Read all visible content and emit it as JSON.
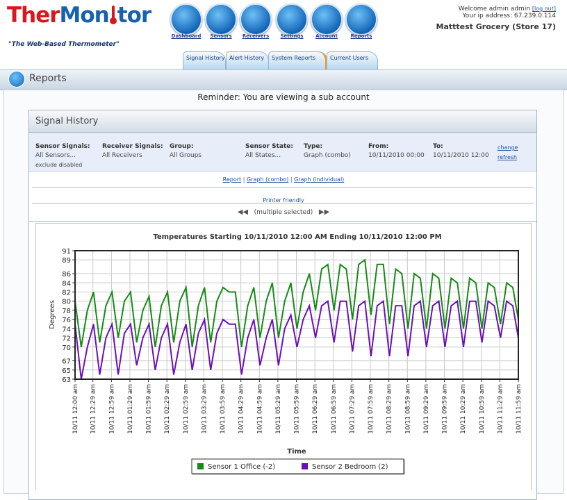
{
  "header": {
    "logo": {
      "part1": "Ther",
      "part2": "Mon",
      "part3": "tor"
    },
    "tagline": "\"The Web-Based Thermometer\"",
    "nav": [
      "Dashboard",
      "Sensors",
      "Receivers",
      "Settings",
      "Account",
      "Reports"
    ],
    "tabs": [
      "Signal History",
      "Alert History",
      "System Reports",
      "Current Users"
    ],
    "user": {
      "welcome": "Welcome admin admin",
      "logout": "[log out]",
      "ip": "Your ip address: 67.239.0.114",
      "store": "Matttest Grocery (Store 17)"
    }
  },
  "page_title": "Reports",
  "reminder": "Reminder: You are viewing a sub account",
  "panel": {
    "title": "Signal History",
    "filters": [
      {
        "label": "Sensor Signals:",
        "value": "All Sensors..."
      },
      {
        "label": "Receiver Signals:",
        "value": "All Receivers"
      },
      {
        "label": "Group:",
        "value": "All Groups"
      },
      {
        "label": "Sensor State:",
        "value": "All States..."
      },
      {
        "label": "Type:",
        "value": "Graph (combo)"
      },
      {
        "label": "From:",
        "value": "10/11/2010 00:00"
      },
      {
        "label": "To:",
        "value": "10/11/2010 12:00"
      }
    ],
    "extra": "exclude disabled",
    "change": "change",
    "refresh": "refresh",
    "links": [
      "Report",
      "Graph (combo)",
      "Graph (individual)"
    ],
    "printer": "Printer friendly",
    "selection": "(multiple selected)"
  },
  "chart_data": {
    "type": "line",
    "title": "Temperatures  Starting 10/11/2010 12:00 AM Ending 10/11/2010 12:00 PM",
    "x_label": "Time",
    "y_label": "Degrees",
    "x": [
      0,
      10,
      20,
      30,
      40,
      50,
      60,
      70,
      80,
      90,
      100,
      110,
      120,
      130,
      140,
      150,
      160,
      170,
      180,
      190,
      200,
      210,
      220,
      230,
      240,
      250,
      260,
      270,
      280,
      290,
      300,
      310,
      320,
      330,
      340,
      350,
      360,
      370,
      380,
      390,
      400,
      410,
      420,
      430,
      440,
      450,
      460,
      470,
      480,
      490,
      500,
      510,
      520,
      530,
      540,
      550,
      560,
      570,
      580,
      590,
      600,
      610,
      620,
      630,
      640,
      650,
      660,
      670,
      680,
      690,
      700,
      710,
      719
    ],
    "series": [
      {
        "name": "Sensor 1 Office (-2)",
        "color": "#158a15",
        "values": [
          80,
          70,
          78,
          82,
          71,
          79,
          82,
          72,
          80,
          82,
          71,
          78,
          81,
          70,
          79,
          82,
          71,
          80,
          83,
          70,
          79,
          83,
          71,
          80,
          83,
          82,
          82,
          70,
          79,
          83,
          72,
          80,
          84,
          72,
          80,
          84,
          74,
          82,
          86,
          78,
          87,
          88,
          78,
          88,
          87,
          76,
          88,
          89,
          77,
          88,
          88,
          75,
          87,
          86,
          74,
          86,
          85,
          74,
          86,
          85,
          74,
          85,
          84,
          74,
          85,
          84,
          74,
          84,
          83,
          75,
          84,
          83,
          76
        ]
      },
      {
        "name": "Sensor 2 Bedroom (2)",
        "color": "#6a10b8",
        "values": [
          75,
          63,
          70,
          75,
          64,
          72,
          75,
          64,
          73,
          75,
          66,
          72,
          75,
          65,
          72,
          75,
          64,
          71,
          75,
          65,
          73,
          76,
          65,
          73,
          76,
          75,
          75,
          64,
          72,
          76,
          66,
          72,
          76,
          66,
          74,
          77,
          70,
          76,
          79,
          72,
          79,
          80,
          71,
          80,
          80,
          69,
          79,
          80,
          68,
          79,
          80,
          68,
          79,
          79,
          68,
          79,
          80,
          70,
          79,
          80,
          70,
          79,
          80,
          70,
          80,
          80,
          71,
          80,
          79,
          72,
          80,
          79,
          72
        ]
      }
    ],
    "xlim": [
      0,
      719
    ],
    "xticks": [
      {
        "value": 0,
        "label": "10/11 12:00 am"
      },
      {
        "value": 29,
        "label": "10/11 12:29 am"
      },
      {
        "value": 59,
        "label": "10/11 12:59 am"
      },
      {
        "value": 89,
        "label": "10/11 01:29 am"
      },
      {
        "value": 119,
        "label": "10/11 01:59 am"
      },
      {
        "value": 149,
        "label": "10/11 02:29 am"
      },
      {
        "value": 179,
        "label": "10/11 02:59 am"
      },
      {
        "value": 209,
        "label": "10/11 03:29 am"
      },
      {
        "value": 239,
        "label": "10/11 03:59 am"
      },
      {
        "value": 269,
        "label": "10/11 04:29 am"
      },
      {
        "value": 299,
        "label": "10/11 04:59 am"
      },
      {
        "value": 329,
        "label": "10/11 05:29 am"
      },
      {
        "value": 359,
        "label": "10/11 05:59 am"
      },
      {
        "value": 389,
        "label": "10/11 06:29 am"
      },
      {
        "value": 419,
        "label": "10/11 06:59 am"
      },
      {
        "value": 449,
        "label": "10/11 07:29 am"
      },
      {
        "value": 479,
        "label": "10/11 07:59 am"
      },
      {
        "value": 509,
        "label": "10/11 08:29 am"
      },
      {
        "value": 539,
        "label": "10/11 08:59 am"
      },
      {
        "value": 569,
        "label": "10/11 09:29 am"
      },
      {
        "value": 599,
        "label": "10/11 09:59 am"
      },
      {
        "value": 629,
        "label": "10/11 10:29 am"
      },
      {
        "value": 659,
        "label": "10/11 10:59 am"
      },
      {
        "value": 689,
        "label": "10/11 11:29 am"
      },
      {
        "value": 719,
        "label": "10/11 11:59 am"
      }
    ],
    "ylim": [
      63,
      91
    ],
    "yticks": [
      63,
      65,
      67,
      70,
      72,
      74,
      76,
      78,
      80,
      82,
      84,
      86,
      89,
      91
    ],
    "grid": true
  }
}
